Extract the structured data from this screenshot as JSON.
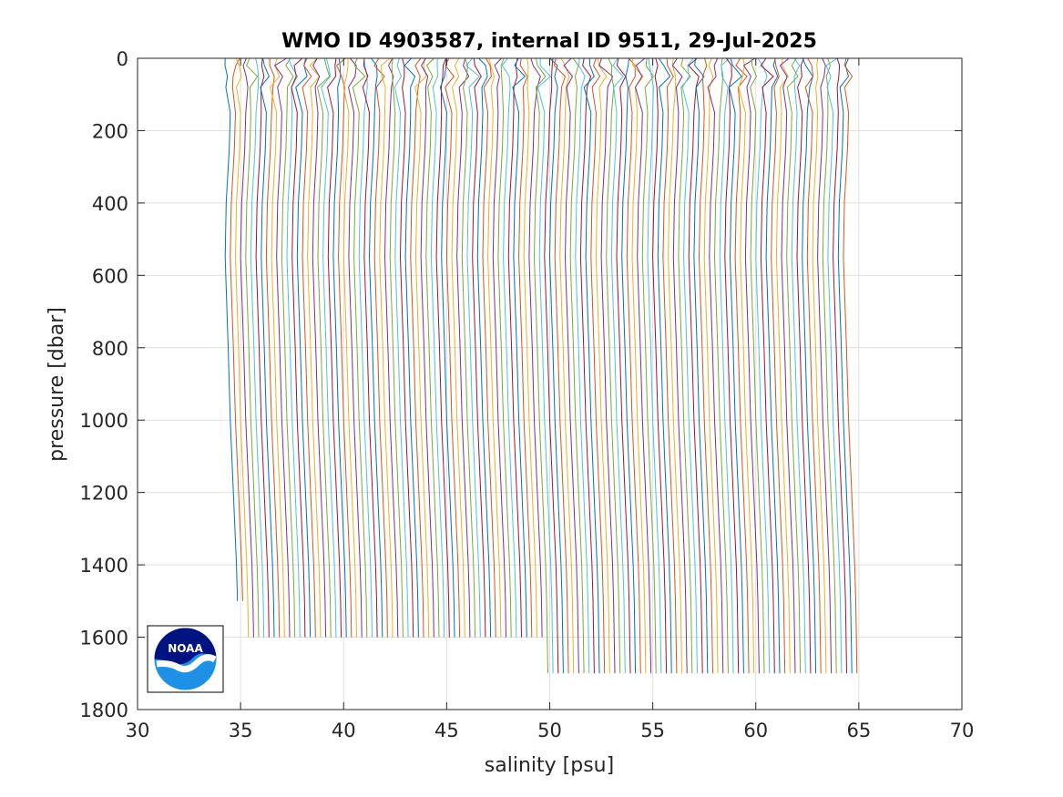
{
  "chart_data": {
    "type": "line",
    "title": "WMO ID 4903587, internal ID 9511, 29-Jul-2025",
    "xlabel": "salinity [psu]",
    "ylabel": "pressure [dbar]",
    "xlim": [
      30,
      70
    ],
    "ylim": [
      0,
      1800
    ],
    "y_reversed": true,
    "grid": true,
    "xticks": [
      "30",
      "35",
      "40",
      "45",
      "50",
      "55",
      "60",
      "65",
      "70"
    ],
    "yticks": [
      "0",
      "200",
      "400",
      "600",
      "800",
      "1000",
      "1200",
      "1400",
      "1600",
      "1800"
    ],
    "series_colors": [
      "#0072BD",
      "#D95319",
      "#EDB120",
      "#7E2F8E",
      "#77AC30",
      "#4DBEEE",
      "#A2142F"
    ],
    "profiles": {
      "count": 121,
      "offset_step_psu": 0.25,
      "first_profile_shape": {
        "pressure": [
          0,
          20,
          50,
          80,
          150,
          250,
          400,
          550,
          800,
          1000,
          1200,
          1400,
          1500
        ],
        "salinity": [
          34.5,
          34.4,
          34.6,
          34.4,
          34.5,
          34.45,
          34.3,
          34.25,
          34.4,
          34.5,
          34.65,
          34.8,
          34.85
        ]
      },
      "bottom_pressure_groups": [
        {
          "profiles": "1-2",
          "max_pressure": 1500
        },
        {
          "profiles": "3-60",
          "max_pressure": 1600
        },
        {
          "profiles": "61-121",
          "max_pressure": 1700
        }
      ]
    }
  },
  "logo": {
    "icon": "noaa-logo-icon",
    "text": "NOAA"
  }
}
